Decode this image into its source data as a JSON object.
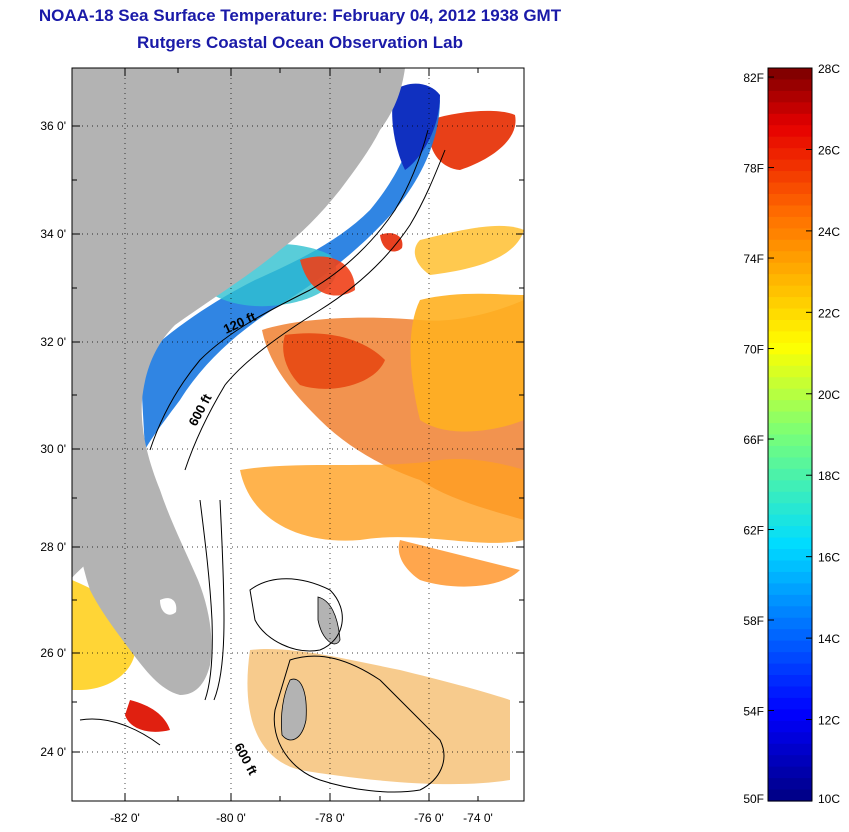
{
  "title": {
    "line1": "NOAA-18 Sea Surface Temperature:  February 04, 2012 1938 GMT",
    "line2": "Rutgers Coastal Ocean Observation Lab"
  },
  "map": {
    "lat_labels": [
      "36 0'",
      "34 0'",
      "32 0'",
      "30 0'",
      "28 0'",
      "26 0'",
      "24 0'"
    ],
    "lon_labels": [
      "-82 0'",
      "-80 0'",
      "-78 0'",
      "-76 0'",
      "-74 0'"
    ],
    "contour_labels": [
      "120 ft",
      "600 ft",
      "600 ft"
    ],
    "colors": {
      "land": "#b3b3b3",
      "ocean_missing": "#ffffff",
      "cold": "#1030c0",
      "warm": "#e03010"
    }
  },
  "colorbar": {
    "fahrenheit_labels": [
      "82F",
      "78F",
      "74F",
      "70F",
      "66F",
      "62F",
      "58F",
      "54F",
      "50F"
    ],
    "celsius_labels": [
      "28C",
      "26C",
      "24C",
      "22C",
      "20C",
      "18C",
      "16C",
      "14C",
      "12C",
      "10C"
    ],
    "range_c": [
      10,
      28
    ]
  }
}
